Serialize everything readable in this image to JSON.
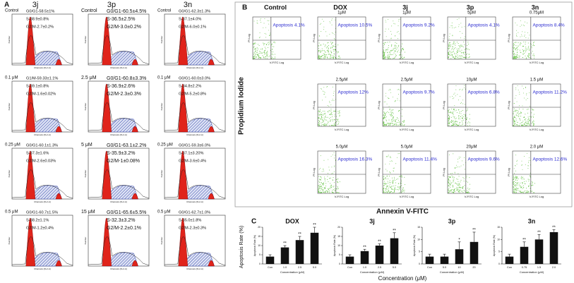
{
  "panel_a": {
    "label": "A",
    "columns": [
      "3j",
      "3p",
      "3n"
    ],
    "x_axis_label": "Channels (FL2-A)",
    "y_axis_label": "Number",
    "rows": [
      [
        {
          "dose": "Control",
          "lines": [
            "G0/G1-58.5±1%",
            "S-38.9±0.8%",
            "G2/M-2.7±0.2%"
          ]
        },
        {
          "dose": "Control",
          "lines": [
            "G0/G1-60.5±4.5%",
            "S-36.5±2.5%",
            "G2/M-3.0±0.2%"
          ]
        },
        {
          "dose": "Control",
          "lines": [
            "G0/G1-62.3±1.3%",
            "S-37.1±4.0%",
            "G2/M-6.0±0.1%"
          ]
        }
      ],
      [
        {
          "dose": "0.1 μM",
          "lines": [
            "G1/M-59.33±1.1%",
            "S-39.1±0.8%",
            "G2/M-1.6±0.02%"
          ]
        },
        {
          "dose": "2.5 μM",
          "lines": [
            "G0/G1-60.8±3.3%",
            "S-36.9±2.6%",
            "G2/M-2.3±0.3%"
          ]
        },
        {
          "dose": "0.1 μM",
          "lines": [
            "G0/G1-60.0±3.0%",
            "S-34.8±2.2%",
            "G2/M-5.2±0.8%"
          ]
        }
      ],
      [
        {
          "dose": "0.25 μM",
          "lines": [
            "G0/G1-60.1±1.3%",
            "S-37.3±1.6%",
            "G2/M-2.6±0.03%"
          ]
        },
        {
          "dose": "5 μM",
          "lines": [
            "G0/G1-63.1±2.2%",
            "S-35.9±3.2%",
            "G2/M-1±0.08%"
          ]
        },
        {
          "dose": "0.25 μM",
          "lines": [
            "G0/G1-59.3±6.0%",
            "S-37.1±3.20%",
            "G2/M-3.6±0.4%"
          ]
        }
      ],
      [
        {
          "dose": "0.5 μM",
          "lines": [
            "G0/G1-60.7±1.5%",
            "S-38.2±1.1%",
            "G2/M-1.2±0.4%"
          ]
        },
        {
          "dose": "15 μM",
          "lines": [
            "G0/G1-65.6±5.5%",
            "S-32.3±3.2%",
            "G2/M-2.2±0.1%"
          ]
        },
        {
          "dose": "0.5 μM",
          "lines": [
            "G0/G1-62.7±1.0%",
            "S-35.0±1.8%",
            "G2/M-2.3±0.3%"
          ]
        }
      ]
    ]
  },
  "panel_b": {
    "label": "B",
    "columns": [
      "Control",
      "DOX",
      "3j",
      "3p",
      "3n"
    ],
    "x_axis_label": "Annexin V-FITC",
    "y_axis_label": "Propidium Iodide",
    "plot_x_label": "V-FITC Log",
    "plot_y_label": "PI Log",
    "rows": [
      [
        {
          "apoptosis": "Apoptosis 4.1%"
        },
        {
          "dose": "1μM",
          "apoptosis": "Apoptosis 10.5%"
        },
        {
          "dose": "1μM",
          "apoptosis": "Apoptosis 9.2%"
        },
        {
          "dose": "5μM",
          "apoptosis": "Apoptosis 4.1%"
        },
        {
          "dose": "0.75μM",
          "apoptosis": "Apoptosis 8.4%"
        }
      ],
      [
        null,
        {
          "dose": "2.5μM",
          "apoptosis": "Apoptosis 12%"
        },
        {
          "dose": "2.5μM",
          "apoptosis": "Apoptosis 9.7%"
        },
        {
          "dose": "10μM",
          "apoptosis": "Apoptosis 6.8%"
        },
        {
          "dose": "1.5 μM",
          "apoptosis": "Apoptosis 11.2%"
        }
      ],
      [
        null,
        {
          "dose": "5.0μM",
          "apoptosis": "Apoptosis 16.3%"
        },
        {
          "dose": "5.0μM",
          "apoptosis": "Apoptosis 11.4%"
        },
        {
          "dose": "20μM",
          "apoptosis": "Apoptosis 9.6%"
        },
        {
          "dose": "2.0 μM",
          "apoptosis": "Apoptosis 12.6%"
        }
      ]
    ]
  },
  "panel_c": {
    "label": "C",
    "y_axis_label": "Apoptosis Rate (%)",
    "x_axis_label": "Concentration (μM)"
  },
  "chart_data": [
    {
      "type": "bar",
      "title": "DOX",
      "x_label": "Concentration (μM)",
      "y_label": "Apoptosis Rate (%)",
      "categories": [
        "Con",
        "1.0",
        "2.5",
        "5.0"
      ],
      "values": [
        4,
        9,
        13,
        17
      ],
      "errors": [
        1,
        1,
        2,
        3
      ],
      "annotations": [
        null,
        "**",
        "**",
        "**"
      ],
      "color": "#111111",
      "ylim": [
        0,
        20
      ],
      "yticks": [
        0,
        5,
        10,
        15,
        20
      ]
    },
    {
      "type": "bar",
      "title": "3j",
      "x_label": "Concentration (μM)",
      "y_label": "Apoptosis Rate (%)",
      "categories": [
        "Con",
        "1.0",
        "2.5",
        "5.0"
      ],
      "values": [
        4,
        7,
        10,
        14
      ],
      "errors": [
        1,
        1,
        1,
        3
      ],
      "annotations": [
        null,
        "**",
        "**",
        "**"
      ],
      "color": "#111111",
      "ylim": [
        0,
        20
      ],
      "yticks": [
        0,
        5,
        10,
        15,
        20
      ]
    },
    {
      "type": "bar",
      "title": "3p",
      "x_label": "Concentration (μM)",
      "y_label": "Apoptosis Rate (%)",
      "categories": [
        "Con",
        "5.0",
        "10",
        "20"
      ],
      "values": [
        3,
        3,
        6,
        9
      ],
      "errors": [
        1,
        1,
        3,
        4
      ],
      "annotations": [
        null,
        null,
        "*",
        "**"
      ],
      "color": "#111111",
      "ylim": [
        0,
        15
      ],
      "yticks": [
        0,
        5,
        10,
        15
      ]
    },
    {
      "type": "bar",
      "title": "3n",
      "x_label": "Concentration (μM)",
      "y_label": "Apoptosis Rate (%)",
      "categories": [
        "Con",
        "0.75",
        "1.5",
        "2.0"
      ],
      "values": [
        3,
        7,
        10,
        13
      ],
      "errors": [
        1,
        2,
        2,
        1
      ],
      "annotations": [
        null,
        "**",
        "**",
        "**"
      ],
      "color": "#111111",
      "ylim": [
        0,
        15
      ],
      "yticks": [
        0,
        5,
        10,
        15
      ]
    }
  ]
}
